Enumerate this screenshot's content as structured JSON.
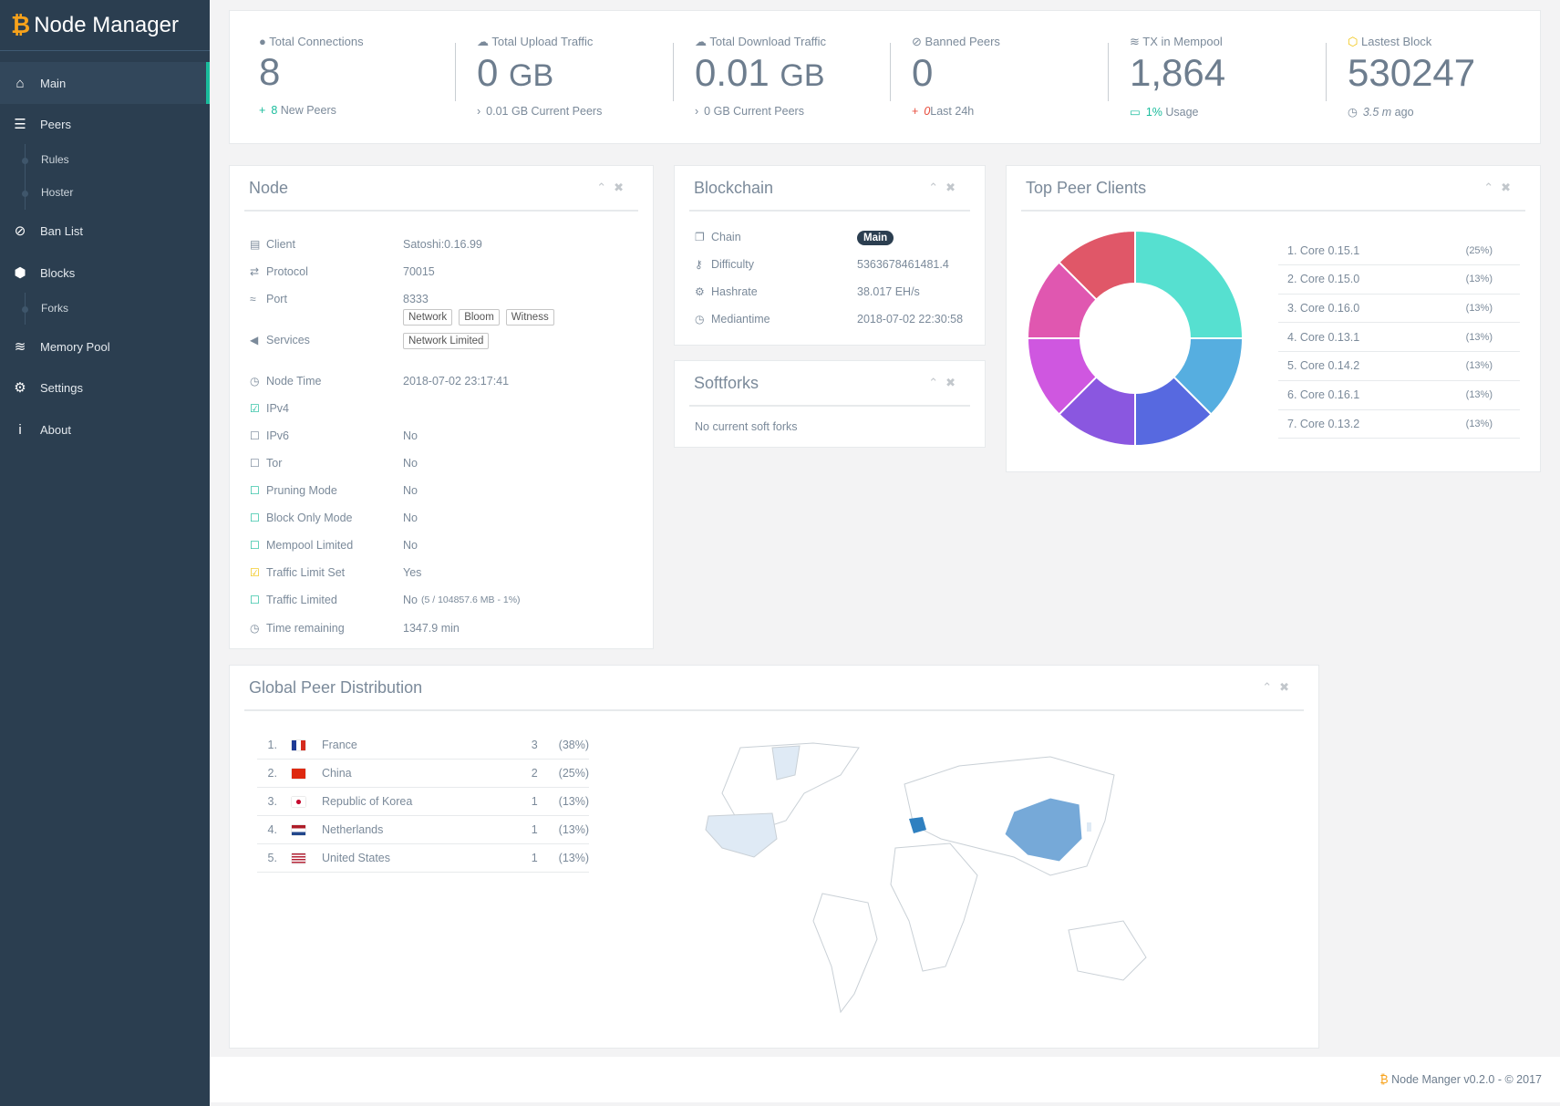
{
  "sidebar": {
    "brand": "Node Manager",
    "items": [
      {
        "label": "Main",
        "icon": "home-icon"
      },
      {
        "label": "Peers",
        "icon": "list-icon"
      },
      {
        "label": "Rules"
      },
      {
        "label": "Hoster"
      },
      {
        "label": "Ban List",
        "icon": "ban-icon"
      },
      {
        "label": "Blocks",
        "icon": "cube-icon"
      },
      {
        "label": "Forks"
      },
      {
        "label": "Memory Pool",
        "icon": "database-icon"
      },
      {
        "label": "Settings",
        "icon": "gear-icon"
      },
      {
        "label": "About",
        "icon": "info-icon"
      }
    ]
  },
  "stats": [
    {
      "label": "Total Connections",
      "value": "8",
      "unit": "",
      "foot_icon": "+",
      "foot_hl": "8",
      "foot": " New Peers"
    },
    {
      "label": "Total Upload Traffic",
      "value": "0",
      "unit": "GB",
      "foot_icon": "›",
      "foot_hl": "",
      "foot": "0.01 GB Current Peers"
    },
    {
      "label": "Total Download Traffic",
      "value": "0.01",
      "unit": "GB",
      "foot_icon": "›",
      "foot_hl": "",
      "foot": "0 GB Current Peers"
    },
    {
      "label": "Banned Peers",
      "value": "0",
      "unit": "",
      "foot_icon": "+",
      "foot_hl": "0",
      "foot": "Last 24h"
    },
    {
      "label": "TX in Mempool",
      "value": "1,864",
      "unit": "",
      "foot_icon": "▭",
      "foot_hl": "1%",
      "foot": " Usage"
    },
    {
      "label": "Lastest Block",
      "value": "530247",
      "unit": "",
      "foot_icon": "◷",
      "foot_hl": "3.5 m",
      "foot": " ago"
    }
  ],
  "node": {
    "title": "Node",
    "rows": [
      {
        "label": "Client",
        "value": "Satoshi:0.16.99"
      },
      {
        "label": "Protocol",
        "value": "70015"
      },
      {
        "label": "Port",
        "value": "8333"
      },
      {
        "label": "Services",
        "value": ""
      },
      {
        "label": "Node Time",
        "value": "2018-07-02 23:17:41"
      },
      {
        "label": "IPv4",
        "value": ""
      },
      {
        "label": "IPv6",
        "value": "No"
      },
      {
        "label": "Tor",
        "value": "No"
      },
      {
        "label": "Pruning Mode",
        "value": "No"
      },
      {
        "label": "Block Only Mode",
        "value": "No"
      },
      {
        "label": "Mempool Limited",
        "value": "No"
      },
      {
        "label": "Traffic Limit Set",
        "value": "Yes"
      },
      {
        "label": "Traffic Limited",
        "value": "No",
        "extra": "(5 / 104857.6 MB - 1%)"
      },
      {
        "label": "Time remaining",
        "value": "1347.9 min"
      }
    ],
    "services": [
      "Network",
      "Bloom",
      "Witness",
      "Network Limited"
    ]
  },
  "blockchain": {
    "title": "Blockchain",
    "chain_label": "Chain",
    "chain": "Main",
    "difficulty_label": "Difficulty",
    "difficulty": "5363678461481.4",
    "hashrate_label": "Hashrate",
    "hashrate": "38.017 EH/s",
    "mediantime_label": "Mediantime",
    "mediantime": "2018-07-02 22:30:58"
  },
  "softforks": {
    "title": "Softforks",
    "empty": "No current soft forks"
  },
  "chart_data": {
    "type": "pie",
    "title": "Top Peer Clients",
    "donut": true,
    "categories": [
      "1. Core 0.15.1",
      "2. Core 0.15.0",
      "3. Core 0.16.0",
      "4. Core 0.13.1",
      "5. Core 0.14.2",
      "6. Core 0.16.1",
      "7. Core 0.13.2"
    ],
    "values": [
      25,
      12.5,
      12.5,
      12.5,
      12.5,
      12.5,
      12.5
    ],
    "labels": [
      "(25%)",
      "(13%)",
      "(13%)",
      "(13%)",
      "(13%)",
      "(13%)",
      "(13%)"
    ],
    "colors": [
      "#56e0d0",
      "#56aee0",
      "#5769e0",
      "#8a57e0",
      "#cf57e0",
      "#e057b0",
      "#e05768"
    ]
  },
  "geo": {
    "title": "Global Peer Distribution",
    "countries": [
      {
        "rank": "1.",
        "name": "France",
        "count": "3",
        "pct": "(38%)"
      },
      {
        "rank": "2.",
        "name": "China",
        "count": "2",
        "pct": "(25%)"
      },
      {
        "rank": "3.",
        "name": "Republic of Korea",
        "count": "1",
        "pct": "(13%)"
      },
      {
        "rank": "4.",
        "name": "Netherlands",
        "count": "1",
        "pct": "(13%)"
      },
      {
        "rank": "5.",
        "name": "United States",
        "count": "1",
        "pct": "(13%)"
      }
    ]
  },
  "footer": {
    "text": "Node Manger v0.2.0 - © 2017"
  }
}
